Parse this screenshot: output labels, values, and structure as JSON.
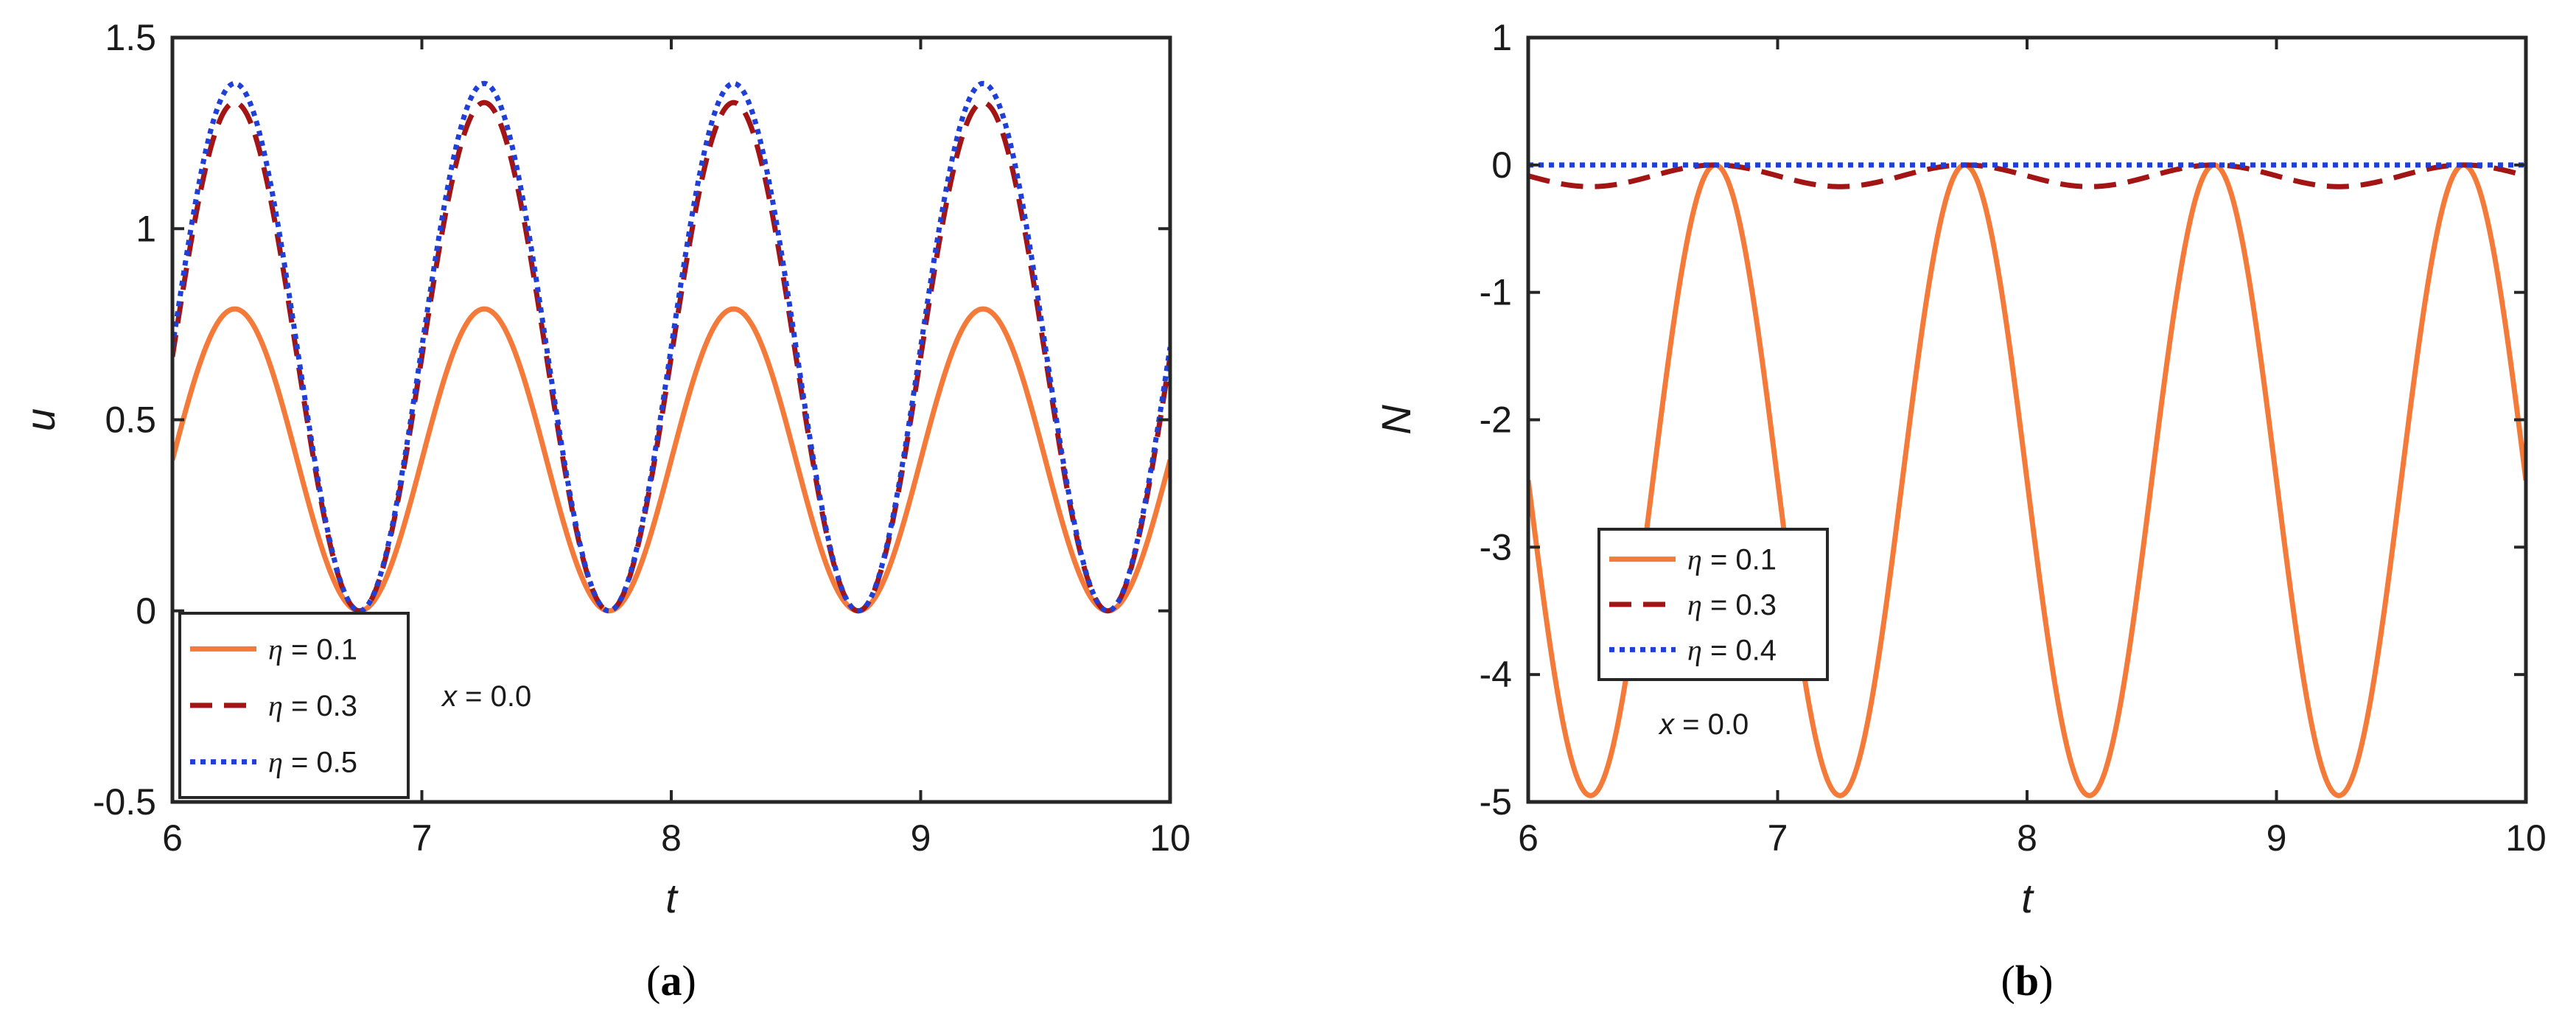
{
  "chart_data": [
    {
      "type": "line",
      "panel": "(a)",
      "caption_letter": "a",
      "xlabel": "t",
      "ylabel": "u",
      "xlim": [
        6,
        10
      ],
      "ylim": [
        -0.5,
        1.5
      ],
      "x_ticks": [
        "6",
        "7",
        "8",
        "9",
        "10"
      ],
      "y_ticks": [
        "-0.5",
        "0",
        "0.5",
        "1",
        "1.5"
      ],
      "legend_position": "bottom-left",
      "annotation": {
        "var": "x",
        "text": " = 0.0"
      },
      "series": [
        {
          "name_prefix": "η",
          "name": " = 0.1",
          "color": "#f47a3a",
          "style": "solid",
          "shape": "cos",
          "amplitude": 0.79,
          "points": [
            [
              6,
              0.37
            ],
            [
              6.25,
              0.79
            ],
            [
              6.5,
              0.4
            ],
            [
              6.75,
              0
            ],
            [
              7,
              0.37
            ],
            [
              7.25,
              0.79
            ],
            [
              7.75,
              0
            ],
            [
              8.25,
              0.79
            ],
            [
              8.75,
              0
            ],
            [
              9.25,
              0.79
            ],
            [
              9.75,
              0
            ],
            [
              10,
              0.37
            ]
          ]
        },
        {
          "name_prefix": "η",
          "name": " = 0.3",
          "color": "#a31515",
          "style": "dashed",
          "shape": "cos",
          "amplitude": 1.33,
          "points": [
            [
              6,
              0.67
            ],
            [
              6.25,
              1.33
            ],
            [
              6.75,
              0
            ],
            [
              7.25,
              1.33
            ],
            [
              7.75,
              0
            ],
            [
              8.25,
              1.33
            ],
            [
              8.75,
              0
            ],
            [
              9.25,
              1.33
            ],
            [
              9.75,
              0
            ],
            [
              10,
              0.67
            ]
          ]
        },
        {
          "name_prefix": "η",
          "name": " = 0.5",
          "color": "#1f3fd6",
          "style": "dotted",
          "shape": "cos",
          "amplitude": 1.38,
          "points": [
            [
              6,
              0.72
            ],
            [
              6.25,
              1.38
            ],
            [
              6.75,
              0
            ],
            [
              7.25,
              1.38
            ],
            [
              7.75,
              0
            ],
            [
              8.25,
              1.38
            ],
            [
              8.75,
              0
            ],
            [
              9.25,
              1.38
            ],
            [
              9.75,
              0
            ],
            [
              10,
              0.72
            ]
          ]
        }
      ]
    },
    {
      "type": "line",
      "panel": "(b)",
      "caption_letter": "b",
      "xlabel": "t",
      "ylabel": "N",
      "xlim": [
        6,
        10
      ],
      "ylim": [
        -5,
        1
      ],
      "x_ticks": [
        "6",
        "7",
        "8",
        "9",
        "10"
      ],
      "y_ticks": [
        "-5",
        "-4",
        "-3",
        "-2",
        "-1",
        "0",
        "1"
      ],
      "legend_position": "middle-left",
      "annotation": {
        "var": "x",
        "text": " = 0.0"
      },
      "series": [
        {
          "name_prefix": "η",
          "name": " = 0.1",
          "color": "#f47a3a",
          "style": "solid",
          "shape": "negcos",
          "amplitude": -4.95,
          "points": [
            [
              6,
              -2.15
            ],
            [
              6.25,
              -4.95
            ],
            [
              6.75,
              0
            ],
            [
              7.25,
              -4.95
            ],
            [
              7.75,
              0
            ],
            [
              8.25,
              -4.95
            ],
            [
              8.75,
              0
            ],
            [
              9.25,
              -4.95
            ],
            [
              9.75,
              0
            ],
            [
              10,
              -2.15
            ]
          ]
        },
        {
          "name_prefix": "η",
          "name": " = 0.3",
          "color": "#a31515",
          "style": "dashed",
          "shape": "negcos",
          "amplitude": -0.17,
          "points": [
            [
              6,
              -0.12
            ],
            [
              6.25,
              -0.17
            ],
            [
              6.75,
              0
            ],
            [
              7.25,
              -0.17
            ],
            [
              7.75,
              0
            ],
            [
              8.25,
              -0.17
            ],
            [
              8.75,
              0
            ],
            [
              9.25,
              -0.17
            ],
            [
              9.75,
              0
            ],
            [
              10,
              -0.12
            ]
          ]
        },
        {
          "name_prefix": "η",
          "name": " = 0.4",
          "color": "#1f3fd6",
          "style": "dotted",
          "shape": "flat",
          "amplitude": 0,
          "points": [
            [
              6,
              0
            ],
            [
              10,
              0
            ]
          ]
        }
      ]
    }
  ]
}
